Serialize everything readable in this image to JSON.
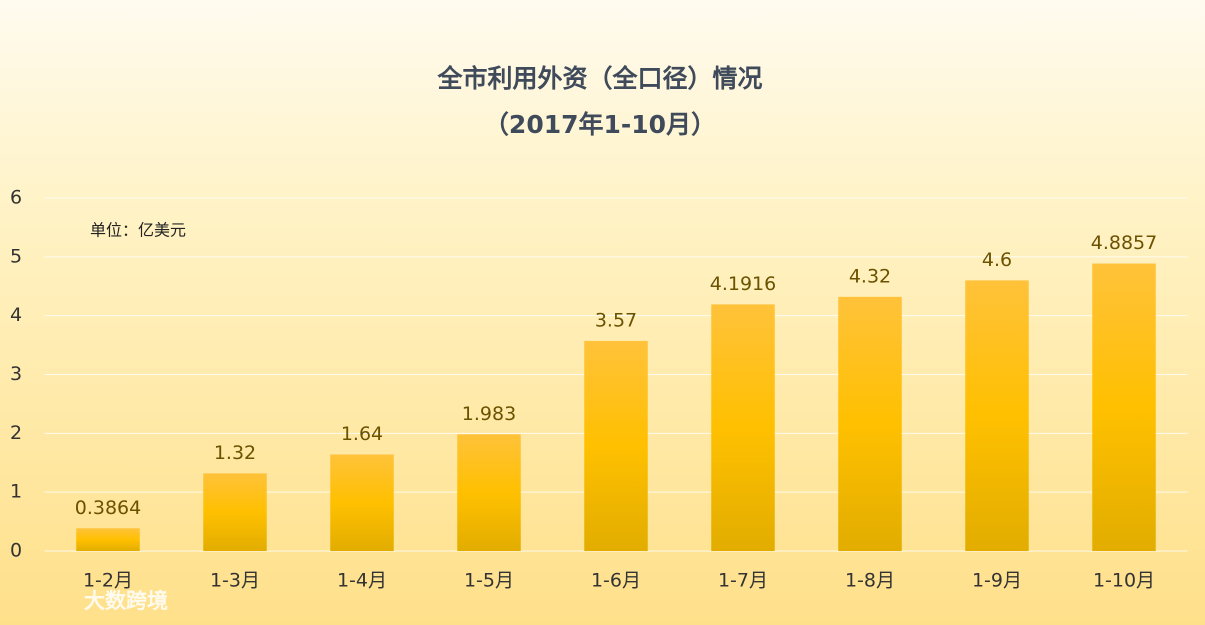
{
  "chart_data": {
    "type": "bar",
    "title": "全市利用外资（全口径）情况",
    "subtitle": "（2017年1-10月）",
    "unit_label": "单位：亿美元",
    "watermark": "大数跨境",
    "categories": [
      "1-2月",
      "1-3月",
      "1-4月",
      "1-5月",
      "1-6月",
      "1-7月",
      "1-8月",
      "1-9月",
      "1-10月"
    ],
    "values": [
      0.3864,
      1.32,
      1.64,
      1.983,
      3.57,
      4.1916,
      4.32,
      4.6,
      4.8857
    ],
    "color": "#ffc000",
    "ylim": [
      0,
      6
    ],
    "yticks": [
      0,
      1,
      2,
      3,
      4,
      5,
      6
    ],
    "grid": true
  }
}
